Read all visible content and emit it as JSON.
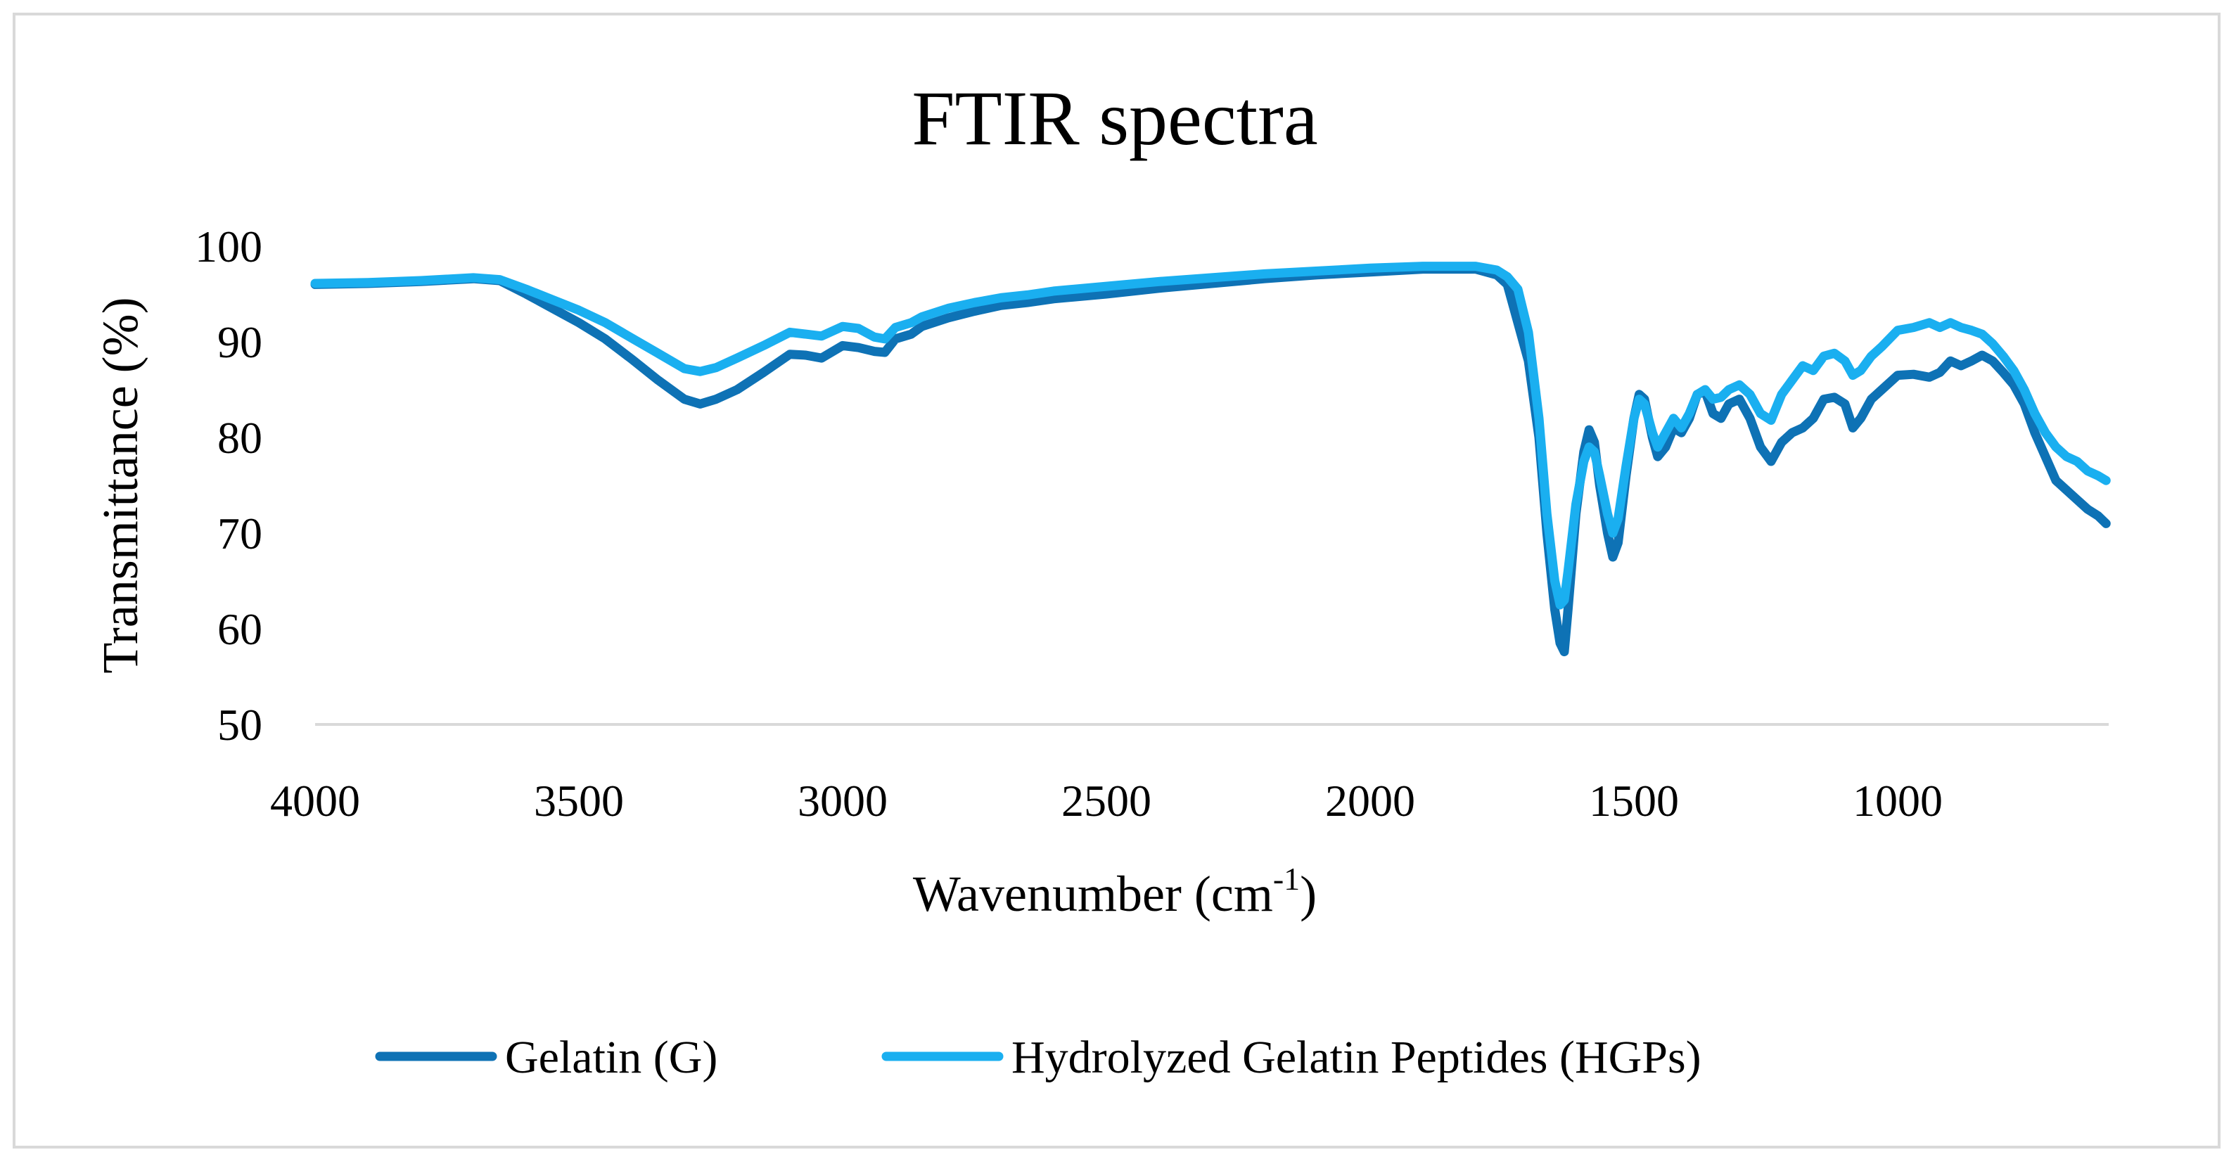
{
  "chart_data": {
    "type": "line",
    "title": "FTIR spectra",
    "xlabel": "Wavenumber (cm",
    "xlabel_superscript": "-1",
    "xlabel_suffix": ")",
    "ylabel": "Transmittance (%)",
    "xlim": [
      4000,
      600
    ],
    "ylim": [
      50,
      100
    ],
    "x_ticks": [
      4000,
      3500,
      3000,
      2500,
      2000,
      1500,
      1000
    ],
    "y_ticks": [
      50,
      60,
      70,
      80,
      90,
      100
    ],
    "x_tick_labels": [
      "4000",
      "3500",
      "3000",
      "2500",
      "2000",
      "1500",
      "1000"
    ],
    "y_tick_labels": [
      "50",
      "60",
      "70",
      "80",
      "90",
      "100"
    ],
    "grid": false,
    "legend_position": "bottom",
    "series": [
      {
        "name": "Gelatin (G)",
        "color": "#0e72b5",
        "points": [
          [
            4000,
            96.0
          ],
          [
            3900,
            96.1
          ],
          [
            3800,
            96.3
          ],
          [
            3700,
            96.6
          ],
          [
            3650,
            96.4
          ],
          [
            3600,
            95.0
          ],
          [
            3550,
            93.5
          ],
          [
            3500,
            92.0
          ],
          [
            3450,
            90.3
          ],
          [
            3400,
            88.2
          ],
          [
            3350,
            86.0
          ],
          [
            3300,
            84.0
          ],
          [
            3270,
            83.5
          ],
          [
            3240,
            84.0
          ],
          [
            3200,
            85.0
          ],
          [
            3150,
            86.8
          ],
          [
            3100,
            88.7
          ],
          [
            3070,
            88.6
          ],
          [
            3040,
            88.3
          ],
          [
            3000,
            89.6
          ],
          [
            2970,
            89.4
          ],
          [
            2940,
            89.0
          ],
          [
            2920,
            88.9
          ],
          [
            2900,
            90.3
          ],
          [
            2870,
            90.8
          ],
          [
            2850,
            91.6
          ],
          [
            2800,
            92.5
          ],
          [
            2750,
            93.2
          ],
          [
            2700,
            93.8
          ],
          [
            2650,
            94.1
          ],
          [
            2600,
            94.5
          ],
          [
            2500,
            95.0
          ],
          [
            2400,
            95.6
          ],
          [
            2300,
            96.1
          ],
          [
            2200,
            96.6
          ],
          [
            2100,
            97.0
          ],
          [
            2000,
            97.3
          ],
          [
            1900,
            97.6
          ],
          [
            1800,
            97.6
          ],
          [
            1760,
            97.0
          ],
          [
            1740,
            96.0
          ],
          [
            1720,
            92.0
          ],
          [
            1700,
            88.0
          ],
          [
            1680,
            80.0
          ],
          [
            1665,
            70.0
          ],
          [
            1650,
            62.0
          ],
          [
            1640,
            58.5
          ],
          [
            1632,
            57.6
          ],
          [
            1625,
            62.0
          ],
          [
            1610,
            72.0
          ],
          [
            1595,
            78.5
          ],
          [
            1585,
            80.8
          ],
          [
            1575,
            79.5
          ],
          [
            1565,
            75.0
          ],
          [
            1550,
            70.0
          ],
          [
            1540,
            67.5
          ],
          [
            1530,
            69.0
          ],
          [
            1515,
            76.0
          ],
          [
            1500,
            82.0
          ],
          [
            1490,
            84.5
          ],
          [
            1480,
            84.0
          ],
          [
            1465,
            80.0
          ],
          [
            1455,
            78.0
          ],
          [
            1440,
            79.0
          ],
          [
            1425,
            81.0
          ],
          [
            1410,
            80.5
          ],
          [
            1395,
            82.0
          ],
          [
            1380,
            84.5
          ],
          [
            1365,
            84.8
          ],
          [
            1350,
            82.5
          ],
          [
            1335,
            82.0
          ],
          [
            1320,
            83.5
          ],
          [
            1300,
            84.0
          ],
          [
            1280,
            82.0
          ],
          [
            1260,
            79.0
          ],
          [
            1240,
            77.5
          ],
          [
            1220,
            79.5
          ],
          [
            1200,
            80.5
          ],
          [
            1180,
            81.0
          ],
          [
            1160,
            82.0
          ],
          [
            1140,
            84.0
          ],
          [
            1120,
            84.2
          ],
          [
            1100,
            83.5
          ],
          [
            1085,
            81.0
          ],
          [
            1070,
            82.0
          ],
          [
            1050,
            84.0
          ],
          [
            1030,
            85.0
          ],
          [
            1000,
            86.5
          ],
          [
            970,
            86.6
          ],
          [
            940,
            86.3
          ],
          [
            920,
            86.8
          ],
          [
            900,
            88.0
          ],
          [
            880,
            87.5
          ],
          [
            860,
            88.0
          ],
          [
            840,
            88.6
          ],
          [
            820,
            88.0
          ],
          [
            800,
            86.8
          ],
          [
            780,
            85.5
          ],
          [
            760,
            83.5
          ],
          [
            740,
            80.5
          ],
          [
            720,
            78.0
          ],
          [
            700,
            75.5
          ],
          [
            680,
            74.5
          ],
          [
            660,
            73.5
          ],
          [
            640,
            72.5
          ],
          [
            620,
            71.8
          ],
          [
            605,
            71.0
          ]
        ]
      },
      {
        "name": "Hydrolyzed Gelatin Peptides (HGPs)",
        "color": "#1aaff0",
        "points": [
          [
            4000,
            96.1
          ],
          [
            3900,
            96.2
          ],
          [
            3800,
            96.4
          ],
          [
            3700,
            96.7
          ],
          [
            3650,
            96.5
          ],
          [
            3600,
            95.5
          ],
          [
            3550,
            94.4
          ],
          [
            3500,
            93.3
          ],
          [
            3450,
            92.0
          ],
          [
            3400,
            90.4
          ],
          [
            3350,
            88.8
          ],
          [
            3300,
            87.2
          ],
          [
            3270,
            86.9
          ],
          [
            3240,
            87.3
          ],
          [
            3200,
            88.3
          ],
          [
            3150,
            89.6
          ],
          [
            3100,
            91.0
          ],
          [
            3070,
            90.8
          ],
          [
            3040,
            90.6
          ],
          [
            3000,
            91.6
          ],
          [
            2970,
            91.4
          ],
          [
            2940,
            90.5
          ],
          [
            2920,
            90.3
          ],
          [
            2900,
            91.5
          ],
          [
            2870,
            92.0
          ],
          [
            2850,
            92.6
          ],
          [
            2800,
            93.5
          ],
          [
            2750,
            94.1
          ],
          [
            2700,
            94.6
          ],
          [
            2650,
            94.9
          ],
          [
            2600,
            95.3
          ],
          [
            2500,
            95.8
          ],
          [
            2400,
            96.3
          ],
          [
            2300,
            96.7
          ],
          [
            2200,
            97.1
          ],
          [
            2100,
            97.4
          ],
          [
            2000,
            97.7
          ],
          [
            1900,
            97.9
          ],
          [
            1800,
            97.9
          ],
          [
            1760,
            97.5
          ],
          [
            1740,
            96.8
          ],
          [
            1720,
            95.5
          ],
          [
            1700,
            91.0
          ],
          [
            1680,
            82.0
          ],
          [
            1665,
            72.0
          ],
          [
            1650,
            65.0
          ],
          [
            1640,
            62.5
          ],
          [
            1632,
            63.0
          ],
          [
            1625,
            66.0
          ],
          [
            1610,
            73.0
          ],
          [
            1595,
            77.5
          ],
          [
            1585,
            79.0
          ],
          [
            1575,
            78.5
          ],
          [
            1565,
            76.0
          ],
          [
            1550,
            72.0
          ],
          [
            1540,
            70.0
          ],
          [
            1530,
            71.5
          ],
          [
            1515,
            77.0
          ],
          [
            1500,
            82.0
          ],
          [
            1490,
            84.0
          ],
          [
            1480,
            83.5
          ],
          [
            1465,
            80.5
          ],
          [
            1455,
            79.0
          ],
          [
            1440,
            80.5
          ],
          [
            1425,
            82.0
          ],
          [
            1410,
            81.0
          ],
          [
            1395,
            82.5
          ],
          [
            1380,
            84.5
          ],
          [
            1365,
            85.0
          ],
          [
            1350,
            84.0
          ],
          [
            1335,
            84.2
          ],
          [
            1320,
            85.0
          ],
          [
            1300,
            85.5
          ],
          [
            1280,
            84.5
          ],
          [
            1260,
            82.5
          ],
          [
            1240,
            81.8
          ],
          [
            1220,
            84.5
          ],
          [
            1200,
            86.0
          ],
          [
            1180,
            87.5
          ],
          [
            1160,
            87.0
          ],
          [
            1140,
            88.5
          ],
          [
            1120,
            88.8
          ],
          [
            1100,
            88.0
          ],
          [
            1085,
            86.5
          ],
          [
            1070,
            87.0
          ],
          [
            1050,
            88.5
          ],
          [
            1030,
            89.5
          ],
          [
            1000,
            91.2
          ],
          [
            970,
            91.5
          ],
          [
            940,
            92.0
          ],
          [
            920,
            91.5
          ],
          [
            900,
            92.0
          ],
          [
            880,
            91.5
          ],
          [
            860,
            91.2
          ],
          [
            840,
            90.8
          ],
          [
            820,
            89.8
          ],
          [
            800,
            88.5
          ],
          [
            780,
            87.0
          ],
          [
            760,
            85.0
          ],
          [
            740,
            82.5
          ],
          [
            720,
            80.5
          ],
          [
            700,
            79.0
          ],
          [
            680,
            78.0
          ],
          [
            660,
            77.5
          ],
          [
            640,
            76.5
          ],
          [
            620,
            76.0
          ],
          [
            605,
            75.5
          ]
        ]
      }
    ]
  }
}
